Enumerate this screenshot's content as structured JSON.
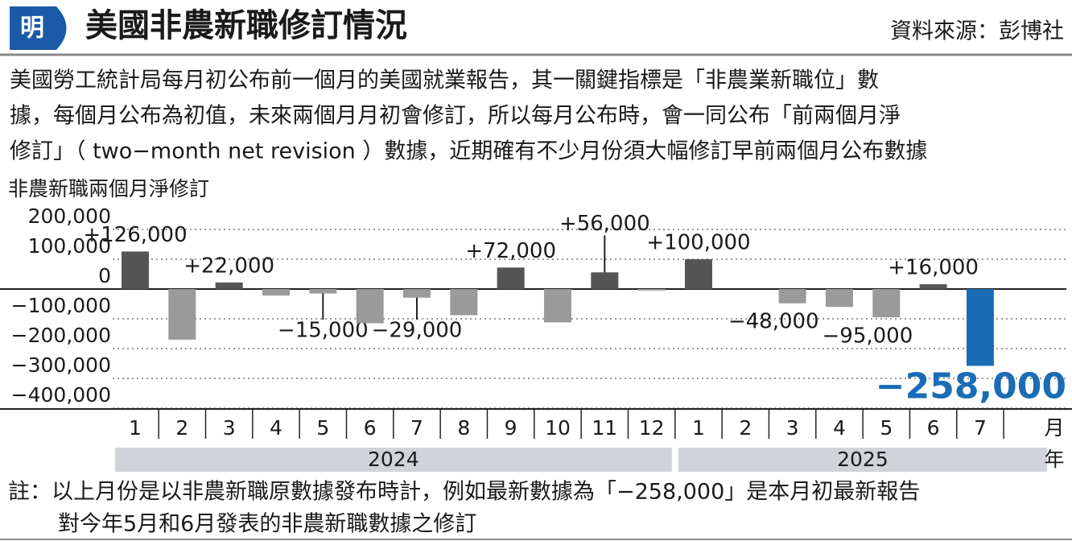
{
  "header": {
    "logo": "明",
    "title": "美國非農新職修訂情況",
    "source": "資料來源：彭博社"
  },
  "description": [
    "美國勞工統計局每月初公布前一個月的美國就業報告，其一關鍵指標是「非農業新職位」數",
    "據，每個月公布為初值，未來兩個月月初會修訂，所以每月公布時，會一同公布「前兩個月淨",
    "修訂」（ two−month net revision ）數據，近期確有不少月份須大幅修訂早前兩個月公布數據"
  ],
  "chart_data": {
    "type": "bar",
    "y_title": "非農新職兩個月淨修訂",
    "categories": [
      "1",
      "2",
      "3",
      "4",
      "5",
      "6",
      "7",
      "8",
      "9",
      "10",
      "11",
      "12",
      "1",
      "2",
      "3",
      "4",
      "5",
      "6",
      "7"
    ],
    "years": [
      "2024",
      "2025"
    ],
    "x_unit": "月",
    "year_unit": "年",
    "values": [
      126000,
      -170000,
      22000,
      -22000,
      -15000,
      -115000,
      -29000,
      -88000,
      72000,
      -112000,
      56000,
      -5000,
      100000,
      0,
      -48000,
      -60000,
      -95000,
      16000,
      -258000
    ],
    "value_labels": [
      "+126,000",
      null,
      "+22,000",
      null,
      "−15,000",
      null,
      "−29,000",
      null,
      "+72,000",
      null,
      "+56,000",
      null,
      "+100,000",
      null,
      "−48,000",
      null,
      "−95,000",
      "+16,000",
      "−258,000"
    ],
    "colors": [
      "#555555",
      "#9a9a9a",
      "#555555",
      "#9a9a9a",
      "#9a9a9a",
      "#9a9a9a",
      "#9a9a9a",
      "#9a9a9a",
      "#555555",
      "#9a9a9a",
      "#555555",
      "#9a9a9a",
      "#555555",
      "#9a9a9a",
      "#9a9a9a",
      "#9a9a9a",
      "#9a9a9a",
      "#555555",
      "#1a6db5"
    ],
    "ylim": [
      -400000,
      200000
    ],
    "yticks": [
      {
        "value": 200000,
        "label": "200,000"
      },
      {
        "value": 100000,
        "label": "100,000"
      },
      0,
      {
        "value": -100000,
        "label": "−100,000"
      },
      {
        "value": -200000,
        "label": "−200,000"
      },
      {
        "value": -300000,
        "label": "−300,000"
      },
      {
        "value": -400000,
        "label": "−400,000"
      }
    ],
    "grid": true
  },
  "note": [
    "註：以上月份是以非農新職原數據發布時計，例如最新數據為「−258,000」是本月初最新報告",
    "對今年5月和6月發表的非農新職數據之修訂"
  ]
}
